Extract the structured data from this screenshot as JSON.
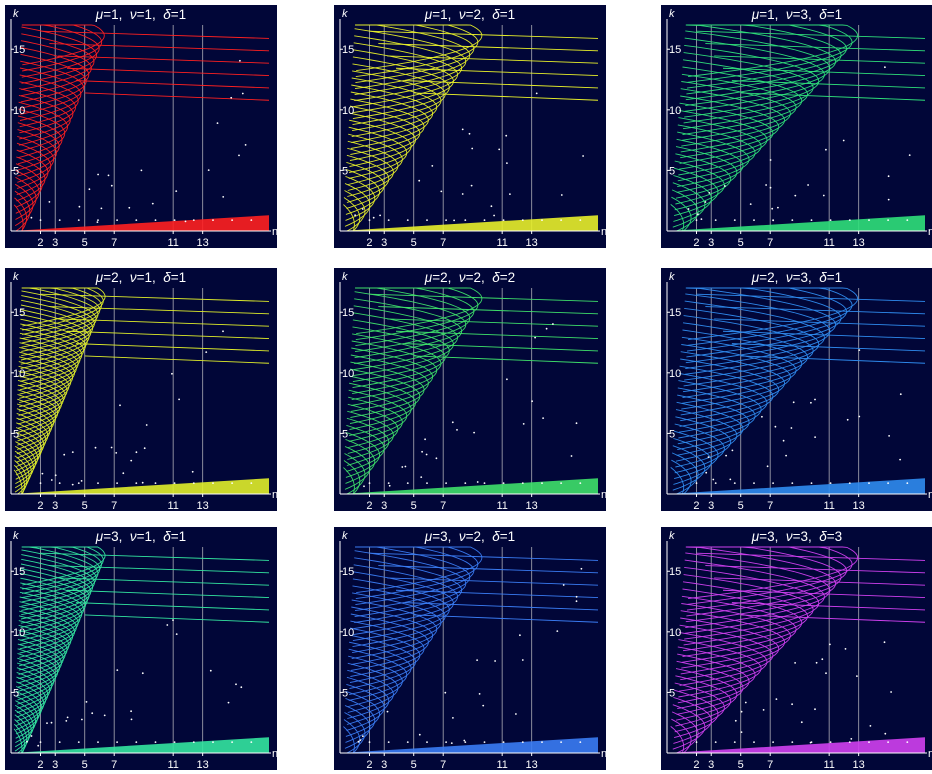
{
  "chart_data": [
    {
      "type": "line",
      "title": {
        "mu": "1",
        "nu": "1",
        "delta": "1"
      },
      "color": "#ff2020",
      "xlabel": "n",
      "ylabel": "k",
      "xticks": [
        2,
        3,
        5,
        7,
        11,
        13
      ],
      "yticks": [
        5,
        10,
        15
      ],
      "ylim": [
        0,
        17
      ]
    },
    {
      "type": "line",
      "title": {
        "mu": "1",
        "nu": "2",
        "delta": "1"
      },
      "color": "#e8f02a",
      "xlabel": "n",
      "ylabel": "k",
      "xticks": [
        2,
        3,
        5,
        7,
        11,
        13
      ],
      "yticks": [
        5,
        10,
        15
      ],
      "ylim": [
        0,
        17
      ]
    },
    {
      "type": "line",
      "title": {
        "mu": "1",
        "nu": "3",
        "delta": "1"
      },
      "color": "#2fe07a",
      "xlabel": "n",
      "ylabel": "k",
      "xticks": [
        2,
        3,
        5,
        7,
        11,
        13
      ],
      "yticks": [
        5,
        10,
        15
      ],
      "ylim": [
        0,
        17
      ]
    },
    {
      "type": "line",
      "title": {
        "mu": "2",
        "nu": "1",
        "delta": "1"
      },
      "color": "#e0ee2a",
      "xlabel": "n",
      "ylabel": "k",
      "xticks": [
        2,
        3,
        5,
        7,
        11,
        13
      ],
      "yticks": [
        5,
        10,
        15
      ],
      "ylim": [
        0,
        17
      ]
    },
    {
      "type": "line",
      "title": {
        "mu": "2",
        "nu": "2",
        "delta": "2"
      },
      "color": "#3ee06a",
      "xlabel": "n",
      "ylabel": "k",
      "xticks": [
        2,
        3,
        5,
        7,
        11,
        13
      ],
      "yticks": [
        5,
        10,
        15
      ],
      "ylim": [
        0,
        17
      ]
    },
    {
      "type": "line",
      "title": {
        "mu": "2",
        "nu": "3",
        "delta": "1"
      },
      "color": "#2f8cf0",
      "xlabel": "n",
      "ylabel": "k",
      "xticks": [
        2,
        3,
        5,
        7,
        11,
        13
      ],
      "yticks": [
        5,
        10,
        15
      ],
      "ylim": [
        0,
        17
      ]
    },
    {
      "type": "line",
      "title": {
        "mu": "3",
        "nu": "1",
        "delta": "1"
      },
      "color": "#33e6a0",
      "xlabel": "n",
      "ylabel": "k",
      "xticks": [
        2,
        3,
        5,
        7,
        11,
        13
      ],
      "yticks": [
        5,
        10,
        15
      ],
      "ylim": [
        0,
        17
      ]
    },
    {
      "type": "line",
      "title": {
        "mu": "3",
        "nu": "2",
        "delta": "1"
      },
      "color": "#3a7cf4",
      "xlabel": "n",
      "ylabel": "k",
      "xticks": [
        2,
        3,
        5,
        7,
        11,
        13
      ],
      "yticks": [
        5,
        10,
        15
      ],
      "ylim": [
        0,
        17
      ]
    },
    {
      "type": "line",
      "title": {
        "mu": "3",
        "nu": "3",
        "delta": "3"
      },
      "color": "#d040f0",
      "xlabel": "n",
      "ylabel": "k",
      "xticks": [
        2,
        3,
        5,
        7,
        11,
        13
      ],
      "yticks": [
        5,
        10,
        15
      ],
      "ylim": [
        0,
        17
      ]
    }
  ],
  "background": "#010638"
}
